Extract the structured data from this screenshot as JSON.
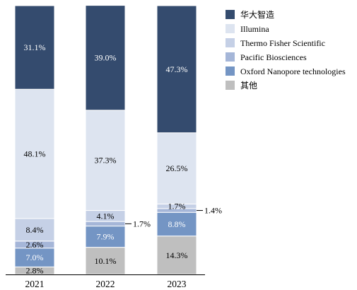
{
  "chart_data": {
    "type": "bar",
    "stacked": true,
    "categories": [
      "2021",
      "2022",
      "2023"
    ],
    "series": [
      {
        "name": "其他",
        "color": "#bfbfbf",
        "values": [
          2.8,
          10.1,
          14.3
        ],
        "labels": [
          "2.8%",
          "10.1%",
          "14.3%"
        ]
      },
      {
        "name": "Oxford Nanopore technologies",
        "color": "#7495c4",
        "values": [
          7.0,
          7.9,
          8.8
        ],
        "labels": [
          "7.0%",
          "7.9%",
          "8.8%"
        ]
      },
      {
        "name": "Pacific Biosciences",
        "color": "#a5b6d8",
        "values": [
          2.6,
          1.7,
          1.4
        ],
        "labels": [
          "2.6%",
          "1.7%",
          "1.4%"
        ]
      },
      {
        "name": "Thermo Fisher Scientific",
        "color": "#c5d0e6",
        "values": [
          8.4,
          4.1,
          1.7
        ],
        "labels": [
          "8.4%",
          "4.1%",
          "1.7%"
        ]
      },
      {
        "name": "Illumina",
        "color": "#dde4f0",
        "values": [
          48.1,
          37.3,
          26.5
        ],
        "labels": [
          "48.1%",
          "37.3%",
          "26.5%"
        ]
      },
      {
        "name": "华大智造",
        "color": "#344b6e",
        "values": [
          31.1,
          39.0,
          47.3
        ],
        "labels": [
          "31.1%",
          "39.0%",
          "47.3%"
        ]
      }
    ],
    "legend_order": [
      "华大智造",
      "Illumina",
      "Thermo Fisher Scientific",
      "Pacific Biosciences",
      "Oxford Nanopore technologies",
      "其他"
    ],
    "callouts": [
      {
        "category": "2022",
        "series": "Pacific Biosciences",
        "text": "1.7%"
      },
      {
        "category": "2023",
        "series": "Pacific Biosciences",
        "text": "1.4%"
      }
    ],
    "ylim": [
      0,
      100
    ],
    "legend_position": "right",
    "grid": false
  }
}
